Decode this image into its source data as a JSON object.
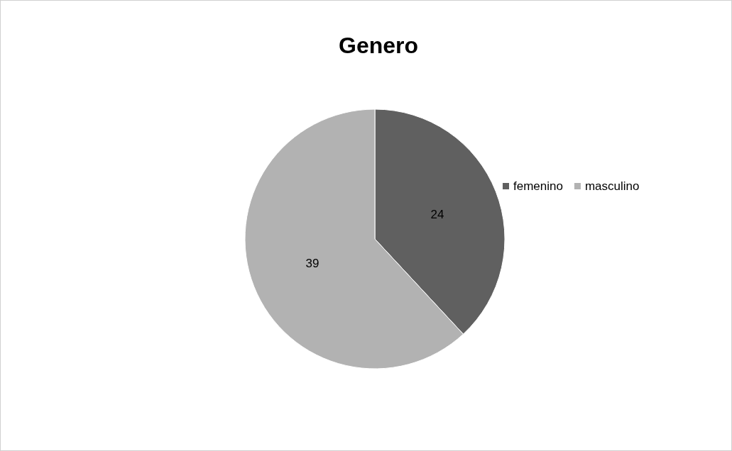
{
  "chart_data": {
    "type": "pie",
    "title": "Genero",
    "categories": [
      "femenino",
      "masculino"
    ],
    "values": [
      24,
      39
    ],
    "colors": [
      "#606060",
      "#b2b2b2"
    ],
    "data_labels": true,
    "legend": "right"
  }
}
